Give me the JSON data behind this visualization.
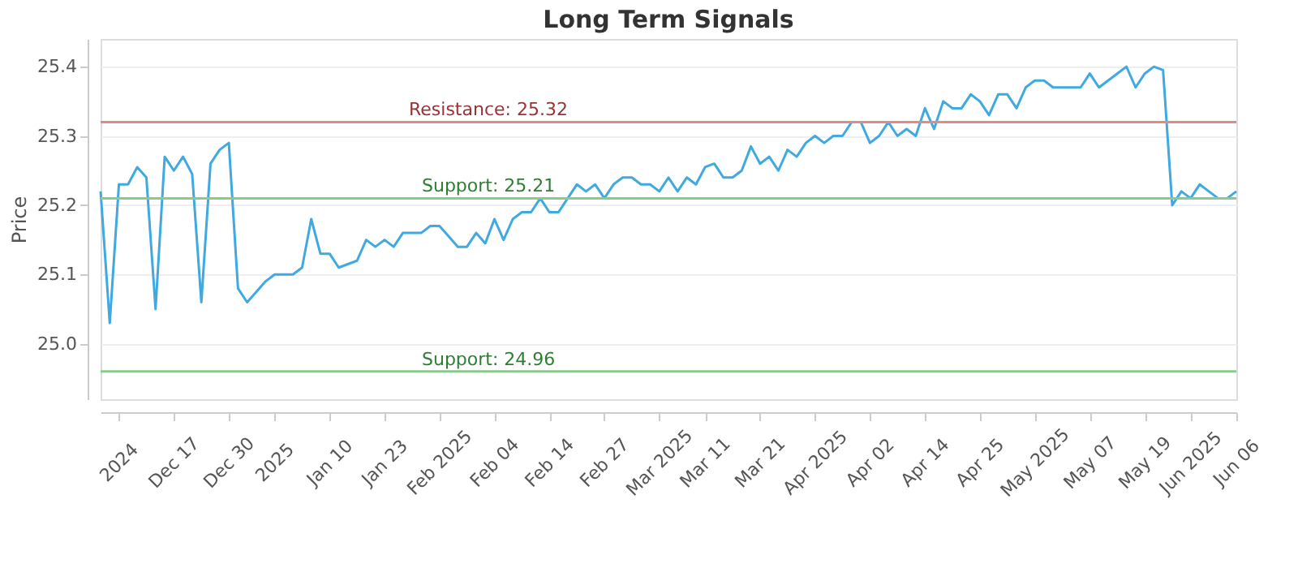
{
  "chart_data": {
    "type": "line",
    "title": "Long Term Signals",
    "ylabel": "Price",
    "categories": [
      null,
      null,
      "2024",
      null,
      null,
      null,
      null,
      null,
      "Dec 17",
      null,
      null,
      null,
      null,
      null,
      "Dec 30",
      null,
      null,
      null,
      null,
      "2025",
      null,
      null,
      null,
      null,
      null,
      "Jan 10",
      null,
      null,
      null,
      null,
      null,
      "Jan 23",
      null,
      null,
      null,
      null,
      null,
      "Feb 2025",
      null,
      null,
      null,
      null,
      null,
      "Feb 04",
      null,
      null,
      null,
      null,
      null,
      "Feb 14",
      null,
      null,
      null,
      null,
      null,
      "Feb 27",
      null,
      null,
      null,
      null,
      null,
      "Mar 2025",
      null,
      null,
      null,
      null,
      "Mar 11",
      null,
      null,
      null,
      null,
      null,
      "Mar 21",
      null,
      null,
      null,
      null,
      null,
      "Apr 2025",
      null,
      null,
      null,
      null,
      null,
      "Apr 02",
      null,
      null,
      null,
      null,
      null,
      "Apr 14",
      null,
      null,
      null,
      null,
      null,
      "Apr 25",
      null,
      null,
      null,
      null,
      null,
      "May 2025",
      null,
      null,
      null,
      null,
      null,
      "May 07",
      null,
      null,
      null,
      null,
      null,
      "May 19",
      null,
      null,
      null,
      null,
      "Jun 2025",
      null,
      null,
      null,
      null,
      "Jun 06"
    ],
    "series": [
      {
        "color": "#3fa9e0",
        "values": [
          25.22,
          25.03,
          25.23,
          25.23,
          25.255,
          25.24,
          25.05,
          25.27,
          25.25,
          25.27,
          25.245,
          25.06,
          25.26,
          25.28,
          25.29,
          25.08,
          25.06,
          25.075,
          25.09,
          25.1,
          25.1,
          25.1,
          25.11,
          25.18,
          25.13,
          25.13,
          25.11,
          25.115,
          25.12,
          25.15,
          25.14,
          25.15,
          25.14,
          25.16,
          25.16,
          25.16,
          25.17,
          25.17,
          25.155,
          25.14,
          25.14,
          25.16,
          25.145,
          25.18,
          25.15,
          25.18,
          25.19,
          25.19,
          25.21,
          25.19,
          25.19,
          25.21,
          25.23,
          25.22,
          25.23,
          25.21,
          25.23,
          25.24,
          25.24,
          25.23,
          25.23,
          25.22,
          25.24,
          25.22,
          25.24,
          25.23,
          25.255,
          25.26,
          25.24,
          25.24,
          25.25,
          25.285,
          25.26,
          25.27,
          25.25,
          25.28,
          25.27,
          25.29,
          25.3,
          25.29,
          25.3,
          25.3,
          25.32,
          25.32,
          25.29,
          25.3,
          25.32,
          25.3,
          25.31,
          25.3,
          25.34,
          25.31,
          25.35,
          25.34,
          25.34,
          25.36,
          25.35,
          25.33,
          25.36,
          25.36,
          25.34,
          25.37,
          25.38,
          25.38,
          25.37,
          25.37,
          25.37,
          25.37,
          25.39,
          25.37,
          25.38,
          25.39,
          25.4,
          25.37,
          25.39,
          25.4,
          25.395,
          25.2,
          25.22,
          25.21,
          25.23,
          25.22,
          25.21,
          25.21,
          25.22
        ]
      }
    ],
    "ylim": [
      24.92,
      25.44
    ],
    "yticks": [
      {
        "value": 25.0,
        "label": "25.0"
      },
      25.1,
      25.2,
      25.3,
      25.4
    ],
    "grid": "y",
    "ref_lines": [
      {
        "axis": "y",
        "value": 25.32,
        "label": "Resistance: 25.32",
        "color": "#e08a8a"
      },
      {
        "axis": "y",
        "value": 25.21,
        "label": "Support: 25.21",
        "color": "#8cc98c"
      },
      {
        "axis": "y",
        "value": 24.96,
        "label": "Support: 24.96",
        "color": "#8cc98c"
      }
    ]
  }
}
